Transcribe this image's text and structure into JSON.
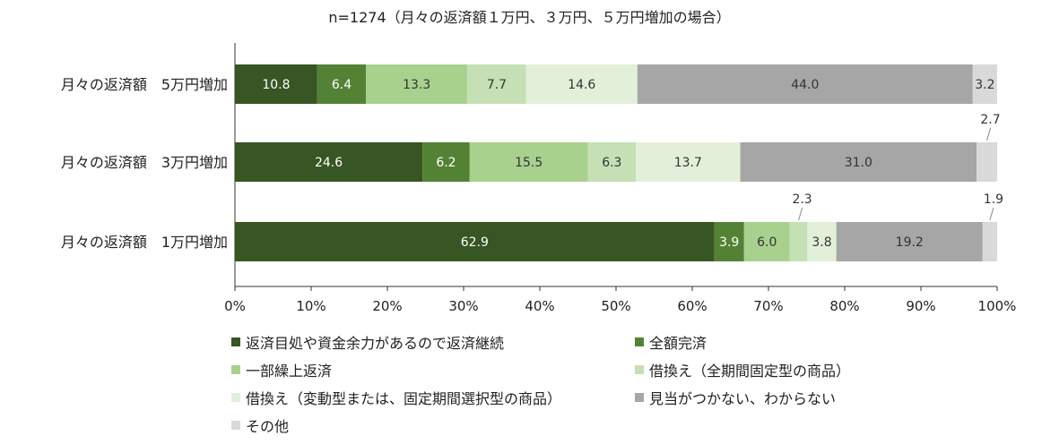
{
  "chart_data": {
    "type": "bar",
    "orientation": "horizontal",
    "stacked": true,
    "title": "n=1274（月々の返済額１万円、３万円、５万円増加の場合）",
    "categories": [
      "月々の返済額　5万円増加",
      "月々の返済額　3万円増加",
      "月々の返済額　1万円増加"
    ],
    "xlim": [
      0,
      100
    ],
    "xticks": [
      "0%",
      "10%",
      "20%",
      "30%",
      "40%",
      "50%",
      "60%",
      "70%",
      "80%",
      "90%",
      "100%"
    ],
    "grid": false,
    "legend_position": "bottom",
    "series": [
      {
        "name": "返済目処や資金余力があるので返済継続",
        "color": "#375623",
        "label_color": "#ffffff",
        "values": [
          10.8,
          24.6,
          62.9
        ]
      },
      {
        "name": "全額完済",
        "color": "#548235",
        "label_color": "#ffffff",
        "values": [
          6.4,
          6.2,
          3.9
        ]
      },
      {
        "name": "一部繰上返済",
        "color": "#a9d18e",
        "label_color": "#333333",
        "values": [
          13.3,
          15.5,
          6.0
        ]
      },
      {
        "name": "借換え（全期間固定型の商品）",
        "color": "#c5e0b4",
        "label_color": "#333333",
        "values": [
          7.7,
          6.3,
          2.3
        ]
      },
      {
        "name": "借換え（変動型または、固定期間選択型の商品）",
        "color": "#e2f0d9",
        "label_color": "#333333",
        "values": [
          14.6,
          13.7,
          3.8
        ]
      },
      {
        "name": "見当がつかない、わからない",
        "color": "#a6a6a6",
        "label_color": "#333333",
        "values": [
          44.0,
          31.0,
          19.2
        ]
      },
      {
        "name": "その他",
        "color": "#d9d9d9",
        "label_color": "#333333",
        "values": [
          3.2,
          2.7,
          1.9
        ]
      }
    ]
  }
}
